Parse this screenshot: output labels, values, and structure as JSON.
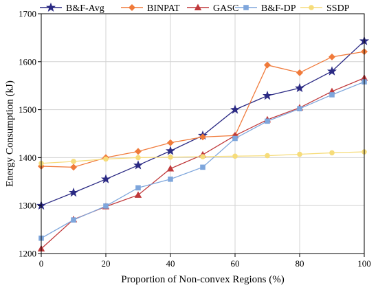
{
  "chart_data": {
    "type": "line",
    "title": "",
    "xlabel": "Proportion of Non-convex Regions (%)",
    "ylabel": "Energy Consumption (kJ)",
    "xlim": [
      0,
      100
    ],
    "ylim": [
      1200,
      1700
    ],
    "xticks": [
      0,
      20,
      40,
      60,
      80,
      100
    ],
    "yticks": [
      1200,
      1300,
      1400,
      1500,
      1600,
      1700
    ],
    "grid": true,
    "legend_position": "top",
    "x": [
      0,
      10,
      20,
      30,
      40,
      50,
      60,
      70,
      80,
      90,
      100
    ],
    "series": [
      {
        "name": "B&F-Avg",
        "color": "#2b2a84",
        "marker": "star",
        "values": [
          1300,
          1327,
          1355,
          1384,
          1414,
          1446,
          1500,
          1529,
          1545,
          1580,
          1643
        ]
      },
      {
        "name": "BINPAT",
        "color": "#f07a3a",
        "marker": "diamond",
        "values": [
          1382,
          1380,
          1400,
          1413,
          1431,
          1443,
          1446,
          1593,
          1577,
          1610,
          1621
        ]
      },
      {
        "name": "GASC",
        "color": "#c0393b",
        "marker": "triangle",
        "values": [
          1210,
          1271,
          1298,
          1322,
          1377,
          1406,
          1446,
          1479,
          1504,
          1538,
          1566
        ]
      },
      {
        "name": "B&F-DP",
        "color": "#7ea6dc",
        "marker": "square",
        "values": [
          1232,
          1270,
          1299,
          1337,
          1355,
          1380,
          1440,
          1476,
          1502,
          1531,
          1558
        ]
      },
      {
        "name": "SSDP",
        "color": "#f6dc7a",
        "marker": "circle",
        "values": [
          1388,
          1392,
          1397,
          1400,
          1401,
          1402,
          1403,
          1404,
          1407,
          1410,
          1412
        ]
      }
    ]
  }
}
